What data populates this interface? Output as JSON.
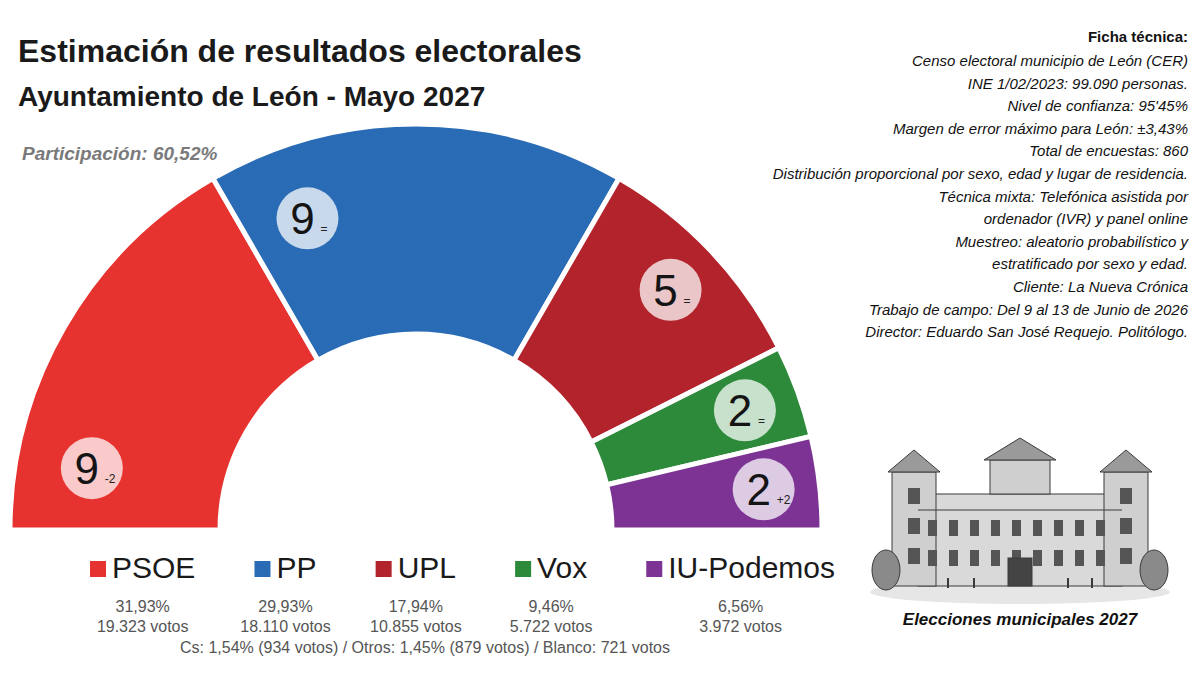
{
  "chart_data": {
    "type": "hemicycle",
    "title": "Estimación de resultados electorales",
    "subtitle": "Ayuntamiento de León - Mayo 2027",
    "participation": "Participación: 60,52%",
    "categories": [
      "PSOE",
      "PP",
      "UPL",
      "Vox",
      "IU-Podemos"
    ],
    "colors": [
      "#e63330",
      "#2a6bb5",
      "#b3232b",
      "#2d8a3a",
      "#7c3394"
    ],
    "values": [
      9,
      9,
      5,
      2,
      2
    ],
    "data_labels": true,
    "changes": [
      -2,
      0,
      0,
      0,
      2
    ],
    "change_labels": [
      "-2",
      "=",
      "=",
      "=",
      "+2"
    ],
    "percentages": [
      31.93,
      29.93,
      17.94,
      9.46,
      6.56
    ],
    "percentage_labels": [
      "31,93%",
      "29,93%",
      "17,94%",
      "9,46%",
      "6,56%"
    ],
    "votes": [
      19323,
      18110,
      10855,
      5722,
      3972
    ],
    "vote_labels": [
      "19.323 votos",
      "18.110 votos",
      "10.855 votos",
      "5.722 votos",
      "3.972 votos"
    ],
    "others": "Cs: 1,54% (934 votos) / Otros: 1,45% (879 votos) / Blanco: 721 votos",
    "legend": "bottom",
    "technical_sheet": {
      "title": "Ficha técnica:",
      "lines": [
        "Censo electoral municipio de León (CER)",
        "INE 1/02/2023: 99.090 personas.",
        "Nivel de confianza: 95'45%",
        "Margen de error máximo para León: ±3,43%",
        "Total de encuestas: 860",
        "Distribución proporcional por sexo, edad y lugar de residencia.",
        "Técnica mixta: Telefónica asistida por",
        "ordenador (IVR) y panel online",
        "Muestreo: aleatorio probabilístico y",
        "estratificado por sexo y edad.",
        "Cliente: La Nueva Crónica",
        "Trabajo de campo: Del 9 al 13 de Junio de 2026",
        "Director: Eduardo San José Requejo. Politólogo."
      ]
    },
    "caption": "Elecciones municipales 2027"
  }
}
